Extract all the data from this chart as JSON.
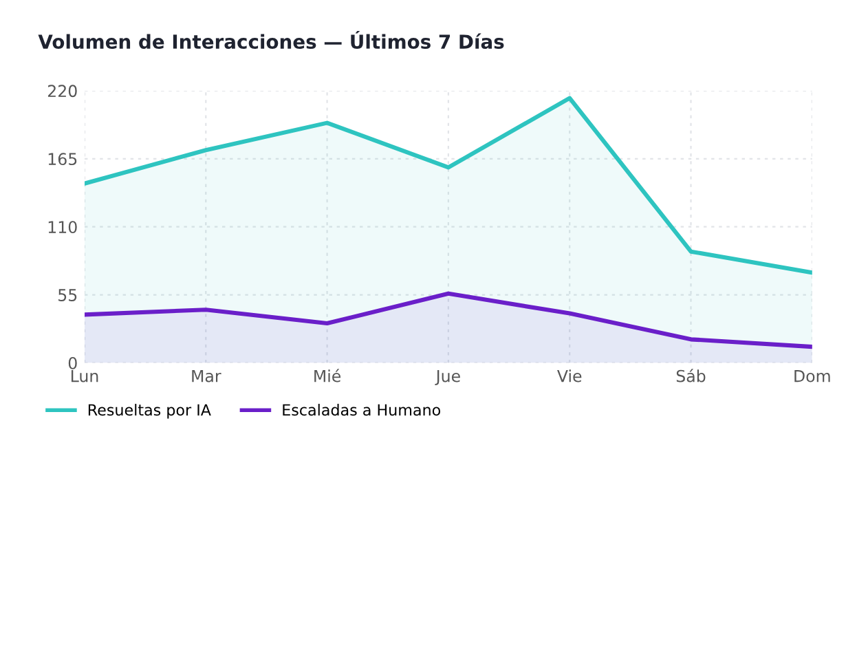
{
  "chart_data": {
    "type": "area",
    "title": "Volumen de Interacciones — Últimos 7 Días",
    "categories": [
      "Lun",
      "Mar",
      "Mié",
      "Jue",
      "Vie",
      "Sáb",
      "Dom"
    ],
    "series": [
      {
        "name": "Resueltas por IA",
        "color": "#2ec4c0",
        "values": [
          145,
          172,
          194,
          158,
          214,
          90,
          73
        ]
      },
      {
        "name": "Escaladas a Humano",
        "color": "#6a1fc9",
        "values": [
          39,
          43,
          32,
          56,
          40,
          19,
          13
        ]
      }
    ],
    "ylim": [
      0,
      220
    ],
    "yticks": [
      0,
      55,
      110,
      165,
      220
    ],
    "grid": true,
    "legend": "bottom left",
    "marker": "none",
    "line_style": "solid"
  }
}
